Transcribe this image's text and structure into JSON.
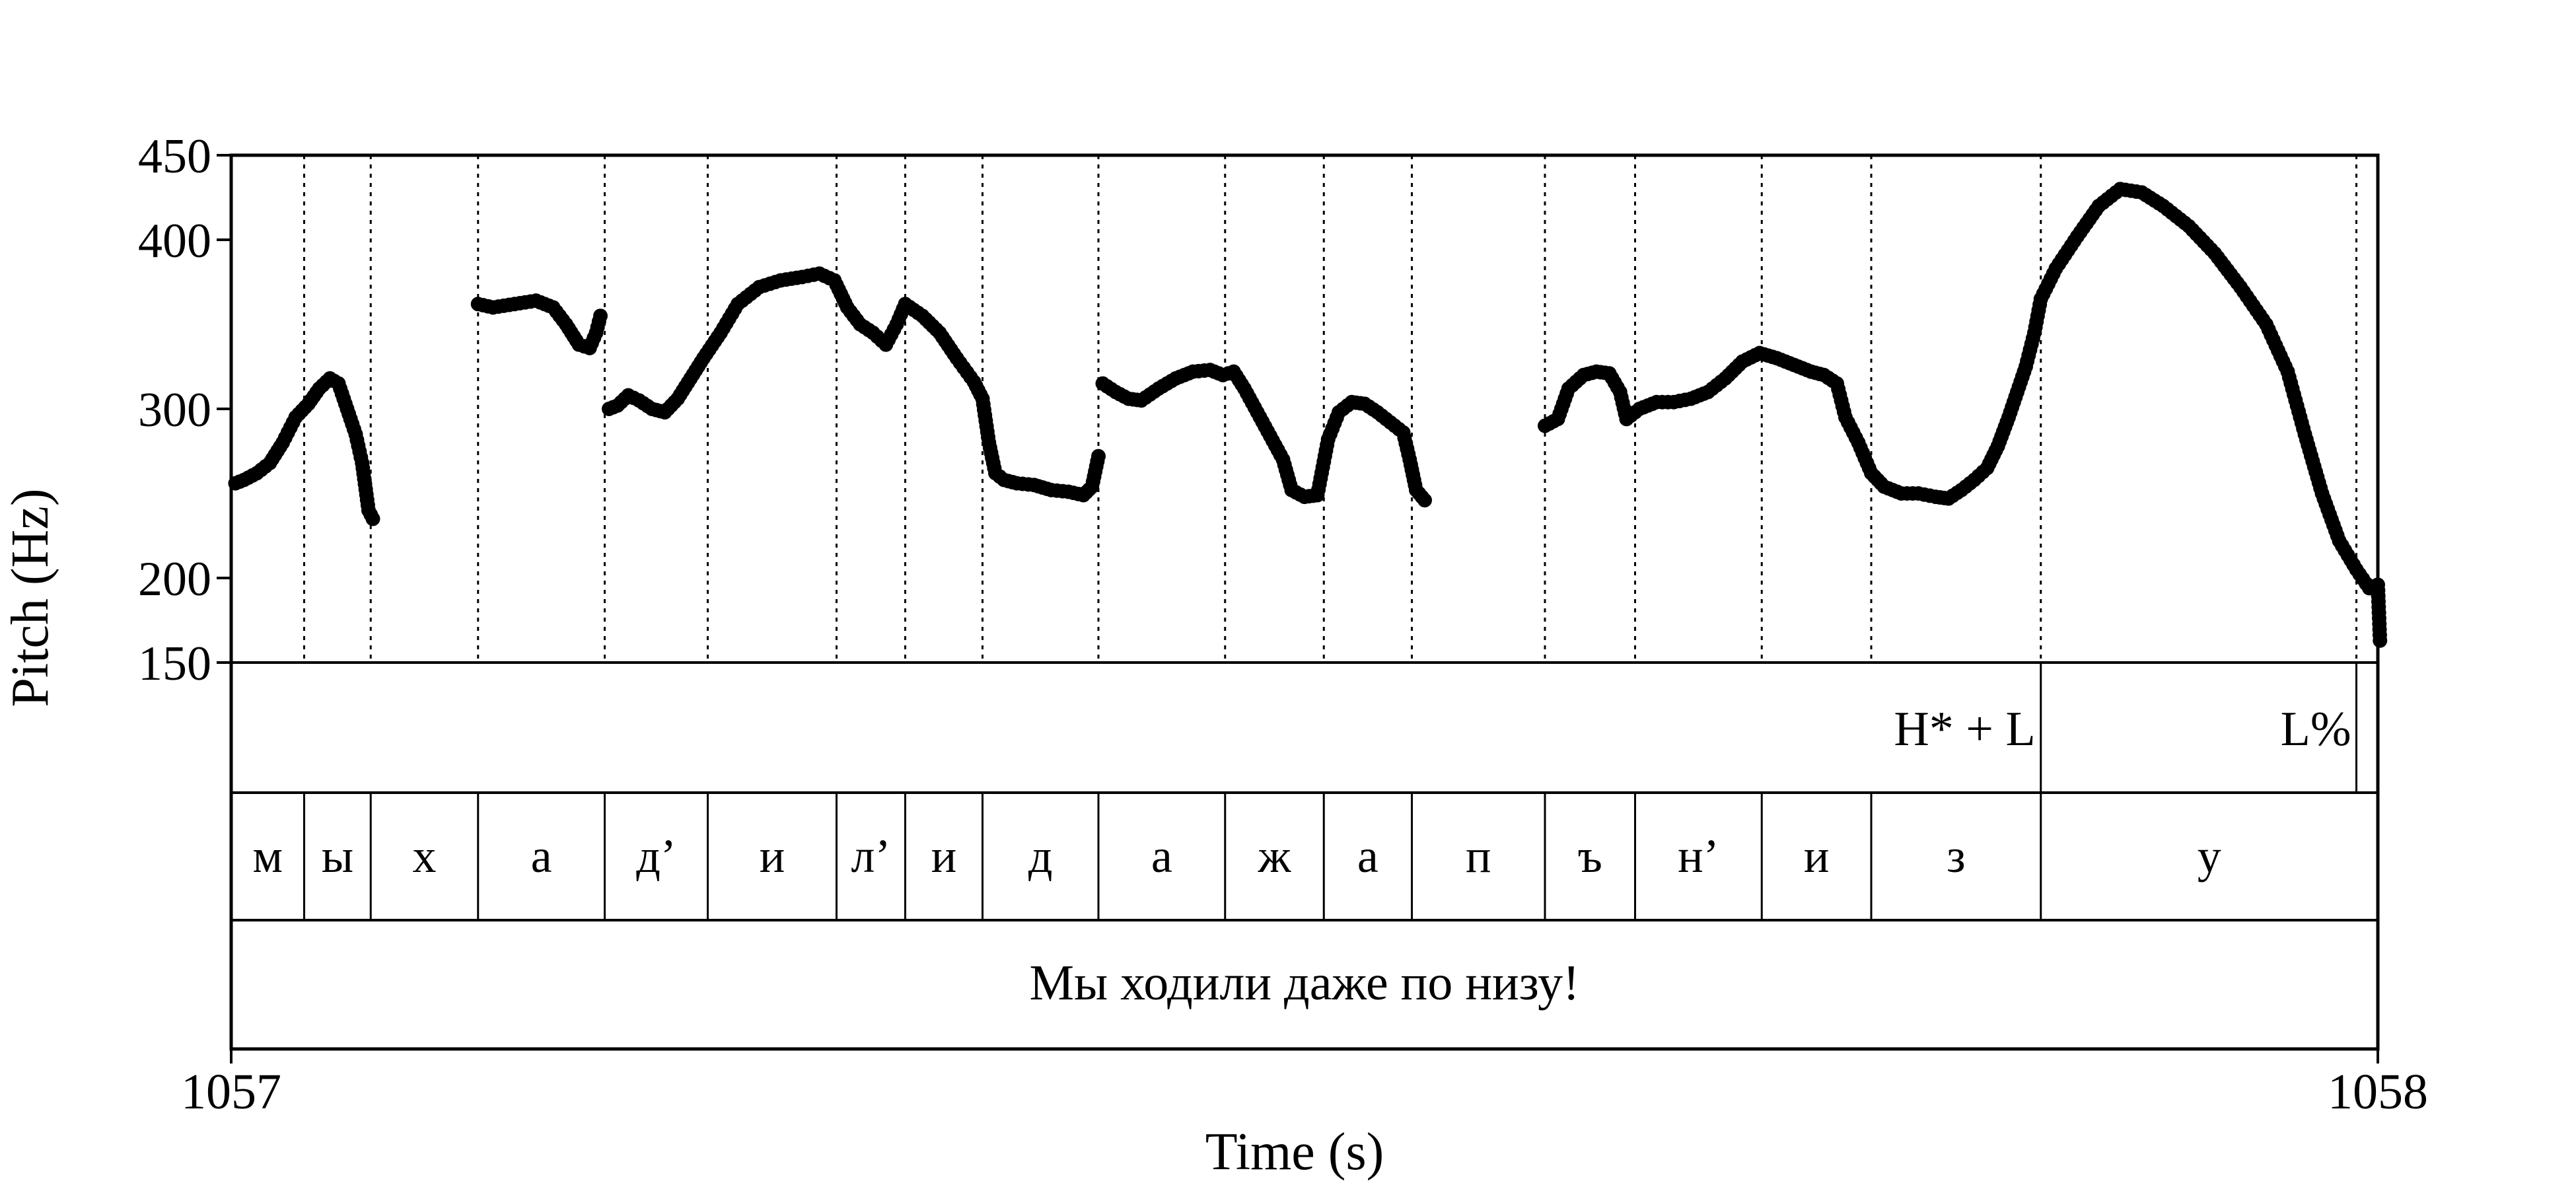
{
  "chart_data": {
    "type": "scatter",
    "title": "",
    "xlabel": "Time (s)",
    "ylabel": "Pitch (Hz)",
    "xlim": [
      1057,
      1058
    ],
    "ylim": [
      150,
      450
    ],
    "x_ticks": [
      {
        "value": 1057,
        "label": "1057"
      },
      {
        "value": 1058,
        "label": "1058"
      }
    ],
    "y_ticks": [
      {
        "value": 450,
        "label": "450"
      },
      {
        "value": 400,
        "label": "400"
      },
      {
        "value": 300,
        "label": "300"
      },
      {
        "value": 200,
        "label": "200"
      },
      {
        "value": 150,
        "label": "150"
      }
    ],
    "boundaries": [
      1057.034,
      1057.065,
      1057.115,
      1057.174,
      1057.222,
      1057.282,
      1057.314,
      1057.35,
      1057.404,
      1057.463,
      1057.509,
      1057.55,
      1057.612,
      1057.654,
      1057.713,
      1057.764,
      1057.843,
      1057.99
    ],
    "tones": [
      {
        "label": "H* + L",
        "time": 1057.843
      },
      {
        "label": "L%",
        "time": 1057.99
      }
    ],
    "segments": [
      {
        "label": "м",
        "start": 1057.0,
        "end": 1057.034
      },
      {
        "label": "ы",
        "start": 1057.034,
        "end": 1057.065
      },
      {
        "label": "х",
        "start": 1057.065,
        "end": 1057.115
      },
      {
        "label": "а",
        "start": 1057.115,
        "end": 1057.174
      },
      {
        "label": "д’",
        "start": 1057.174,
        "end": 1057.222
      },
      {
        "label": "и",
        "start": 1057.222,
        "end": 1057.282
      },
      {
        "label": "л’",
        "start": 1057.282,
        "end": 1057.314
      },
      {
        "label": "и",
        "start": 1057.314,
        "end": 1057.35
      },
      {
        "label": "д",
        "start": 1057.35,
        "end": 1057.404
      },
      {
        "label": "а",
        "start": 1057.404,
        "end": 1057.463
      },
      {
        "label": "ж",
        "start": 1057.463,
        "end": 1057.509
      },
      {
        "label": "а",
        "start": 1057.509,
        "end": 1057.55
      },
      {
        "label": "п",
        "start": 1057.55,
        "end": 1057.612
      },
      {
        "label": "ъ",
        "start": 1057.612,
        "end": 1057.654
      },
      {
        "label": "н’",
        "start": 1057.654,
        "end": 1057.713
      },
      {
        "label": "и",
        "start": 1057.713,
        "end": 1057.764
      },
      {
        "label": "з",
        "start": 1057.764,
        "end": 1057.843
      },
      {
        "label": "у",
        "start": 1057.843,
        "end": 1058.0
      }
    ],
    "sentence": "Мы ходили даже по низу!",
    "pitch_contours": [
      [
        [
          1057.002,
          256
        ],
        [
          1057.006,
          258
        ],
        [
          1057.012,
          262
        ],
        [
          1057.018,
          268
        ],
        [
          1057.024,
          280
        ],
        [
          1057.03,
          295
        ],
        [
          1057.036,
          303
        ],
        [
          1057.041,
          312
        ],
        [
          1057.046,
          318
        ],
        [
          1057.05,
          315
        ],
        [
          1057.054,
          300
        ],
        [
          1057.058,
          285
        ],
        [
          1057.061,
          268
        ],
        [
          1057.064,
          240
        ],
        [
          1057.066,
          235
        ]
      ],
      [
        [
          1057.115,
          362
        ],
        [
          1057.122,
          360
        ],
        [
          1057.132,
          362
        ],
        [
          1057.142,
          364
        ],
        [
          1057.15,
          360
        ],
        [
          1057.156,
          350
        ],
        [
          1057.162,
          338
        ],
        [
          1057.167,
          336
        ],
        [
          1057.17,
          345
        ],
        [
          1057.172,
          355
        ]
      ],
      [
        [
          1057.176,
          300
        ],
        [
          1057.18,
          302
        ],
        [
          1057.185,
          308
        ],
        [
          1057.19,
          305
        ],
        [
          1057.196,
          300
        ],
        [
          1057.202,
          298
        ],
        [
          1057.208,
          306
        ],
        [
          1057.214,
          318
        ],
        [
          1057.22,
          330
        ],
        [
          1057.228,
          345
        ],
        [
          1057.236,
          362
        ],
        [
          1057.246,
          372
        ],
        [
          1057.256,
          376
        ],
        [
          1057.266,
          378
        ],
        [
          1057.274,
          380
        ],
        [
          1057.281,
          376
        ],
        [
          1057.287,
          360
        ],
        [
          1057.293,
          350
        ],
        [
          1057.299,
          345
        ],
        [
          1057.305,
          338
        ],
        [
          1057.31,
          350
        ],
        [
          1057.314,
          362
        ],
        [
          1057.322,
          355
        ],
        [
          1057.33,
          345
        ],
        [
          1057.338,
          330
        ],
        [
          1057.346,
          316
        ],
        [
          1057.35,
          306
        ],
        [
          1057.353,
          280
        ],
        [
          1057.356,
          262
        ],
        [
          1057.36,
          258
        ],
        [
          1057.366,
          256
        ],
        [
          1057.374,
          255
        ],
        [
          1057.382,
          252
        ],
        [
          1057.39,
          251
        ],
        [
          1057.397,
          249
        ],
        [
          1057.401,
          254
        ],
        [
          1057.404,
          272
        ]
      ],
      [
        [
          1057.406,
          315
        ],
        [
          1057.412,
          310
        ],
        [
          1057.418,
          306
        ],
        [
          1057.424,
          305
        ],
        [
          1057.432,
          312
        ],
        [
          1057.44,
          318
        ],
        [
          1057.448,
          322
        ],
        [
          1057.456,
          323
        ],
        [
          1057.462,
          320
        ],
        [
          1057.467,
          322
        ],
        [
          1057.472,
          312
        ],
        [
          1057.478,
          298
        ],
        [
          1057.484,
          284
        ],
        [
          1057.49,
          270
        ],
        [
          1057.494,
          252
        ],
        [
          1057.5,
          248
        ],
        [
          1057.506,
          249
        ],
        [
          1057.511,
          282
        ],
        [
          1057.516,
          298
        ],
        [
          1057.522,
          304
        ],
        [
          1057.528,
          303
        ],
        [
          1057.534,
          298
        ],
        [
          1057.54,
          292
        ],
        [
          1057.546,
          286
        ],
        [
          1057.549,
          270
        ],
        [
          1057.552,
          252
        ],
        [
          1057.556,
          246
        ]
      ],
      [
        [
          1057.612,
          290
        ],
        [
          1057.618,
          294
        ],
        [
          1057.623,
          312
        ],
        [
          1057.63,
          320
        ],
        [
          1057.636,
          322
        ],
        [
          1057.642,
          321
        ],
        [
          1057.647,
          310
        ],
        [
          1057.65,
          294
        ],
        [
          1057.656,
          300
        ],
        [
          1057.664,
          304
        ],
        [
          1057.672,
          304
        ],
        [
          1057.68,
          306
        ],
        [
          1057.688,
          310
        ],
        [
          1057.696,
          318
        ],
        [
          1057.704,
          328
        ],
        [
          1057.712,
          333
        ],
        [
          1057.72,
          330
        ],
        [
          1057.728,
          326
        ],
        [
          1057.736,
          322
        ],
        [
          1057.742,
          320
        ],
        [
          1057.748,
          315
        ],
        [
          1057.752,
          295
        ],
        [
          1057.758,
          280
        ],
        [
          1057.764,
          262
        ],
        [
          1057.77,
          254
        ],
        [
          1057.778,
          250
        ],
        [
          1057.786,
          250
        ],
        [
          1057.794,
          248
        ],
        [
          1057.8,
          247
        ],
        [
          1057.806,
          252
        ],
        [
          1057.812,
          258
        ],
        [
          1057.818,
          265
        ],
        [
          1057.823,
          278
        ],
        [
          1057.828,
          295
        ],
        [
          1057.832,
          310
        ],
        [
          1057.836,
          325
        ],
        [
          1057.84,
          345
        ],
        [
          1057.843,
          365
        ],
        [
          1057.85,
          383
        ],
        [
          1057.86,
          402
        ],
        [
          1057.87,
          420
        ],
        [
          1057.88,
          430
        ],
        [
          1057.89,
          428
        ],
        [
          1057.9,
          420
        ],
        [
          1057.912,
          408
        ],
        [
          1057.924,
          392
        ],
        [
          1057.936,
          372
        ],
        [
          1057.948,
          350
        ],
        [
          1057.958,
          322
        ],
        [
          1057.966,
          285
        ],
        [
          1057.974,
          250
        ],
        [
          1057.982,
          222
        ],
        [
          1057.99,
          205
        ],
        [
          1057.996,
          194
        ],
        [
          1058.0,
          196
        ],
        [
          1058.001,
          163
        ]
      ]
    ]
  }
}
